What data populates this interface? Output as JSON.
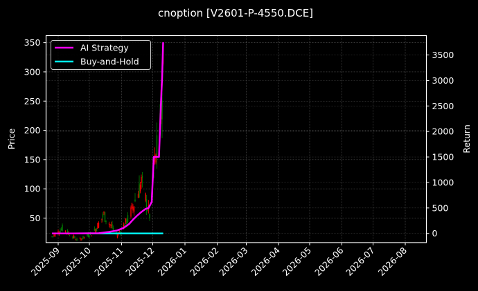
{
  "chart_data": {
    "type": "line",
    "title": "cnoption [V2601-P-4550.DCE]",
    "xlabel": "",
    "ylabel_left": "Price",
    "ylabel_right": "Return",
    "x_ticks": [
      "2025-09",
      "2025-10",
      "2025-11",
      "2025-12",
      "2026-01",
      "2026-02",
      "2026-03",
      "2026-04",
      "2026-05",
      "2026-06",
      "2026-07",
      "2026-08"
    ],
    "y_left_ticks": [
      50,
      100,
      150,
      200,
      250,
      300,
      350
    ],
    "y_left_range": [
      8,
      362
    ],
    "y_right_ticks": [
      0,
      500,
      1000,
      1500,
      2000,
      2500,
      3000,
      3500
    ],
    "y_right_range": [
      -180,
      3880
    ],
    "grid": true,
    "legend_position": "upper left",
    "legend": [
      {
        "label": "AI Strategy",
        "color": "#ff00ff"
      },
      {
        "label": "Buy-and-Hold",
        "color": "#00ffff"
      }
    ],
    "series": [
      {
        "name": "AI Strategy",
        "axis": "right",
        "x_dates": [
          "2025-08-26",
          "2025-09-15",
          "2025-10-10",
          "2025-10-20",
          "2025-10-28",
          "2025-11-03",
          "2025-11-08",
          "2025-11-12",
          "2025-11-16",
          "2025-11-20",
          "2025-11-24",
          "2025-11-27",
          "2025-11-30",
          "2025-12-02",
          "2025-12-04",
          "2025-12-07",
          "2025-12-09",
          "2025-12-10",
          "2025-12-11"
        ],
        "values": [
          0,
          0,
          5,
          30,
          60,
          110,
          180,
          270,
          350,
          420,
          480,
          500,
          620,
          1500,
          1500,
          1500,
          2600,
          3050,
          3750
        ]
      },
      {
        "name": "Buy-and-Hold",
        "axis": "right",
        "x_dates": [
          "2025-08-26",
          "2025-12-11"
        ],
        "values": [
          0,
          0
        ]
      },
      {
        "name": "Price (candles)",
        "axis": "left",
        "type": "candlestick",
        "up_color": "#008000",
        "down_color": "#ff0000",
        "approx_range": {
          "low": 8,
          "high": 345
        },
        "note": "Daily OHLC bars from ~2025-08-26 to ~2025-12-11; price mostly 10-60 until late Nov, then rising sharply to ~345 by 2025-12-11"
      }
    ]
  }
}
